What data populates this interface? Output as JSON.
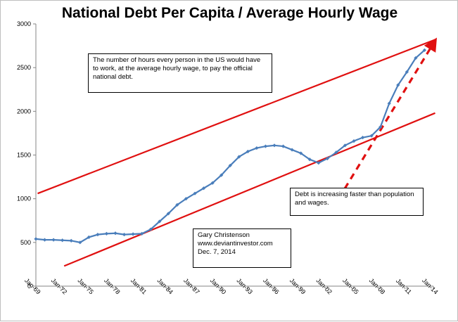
{
  "chart_data": {
    "type": "line",
    "title": "National Debt Per Capita / Average Hourly Wage",
    "xlabel": "",
    "ylabel": "",
    "ylim": [
      0,
      3000
    ],
    "y_ticks": [
      0,
      500,
      1000,
      1500,
      2000,
      2500,
      3000
    ],
    "x_tick_labels": [
      "Jan-69",
      "Jan-72",
      "Jan-75",
      "Jan-78",
      "Jan-81",
      "Jan-84",
      "Jan-87",
      "Jan-90",
      "Jan-93",
      "Jan-96",
      "Jan-99",
      "Jan-02",
      "Jan-05",
      "Jan-08",
      "Jan-11",
      "Jan-14"
    ],
    "x_start_year": 1969,
    "x_end_year": 2014,
    "grid": false,
    "series": [
      {
        "color": "#4a7ebb",
        "years": [
          1969,
          1970,
          1971,
          1972,
          1973,
          1974,
          1975,
          1976,
          1977,
          1978,
          1979,
          1980,
          1981,
          1982,
          1983,
          1984,
          1985,
          1986,
          1987,
          1988,
          1989,
          1990,
          1991,
          1992,
          1993,
          1994,
          1995,
          1996,
          1997,
          1998,
          1999,
          2000,
          2001,
          2002,
          2003,
          2004,
          2005,
          2006,
          2007,
          2008,
          2009,
          2010,
          2011,
          2012,
          2013
        ],
        "values": [
          540,
          530,
          530,
          525,
          520,
          500,
          560,
          590,
          600,
          605,
          590,
          595,
          600,
          650,
          740,
          830,
          930,
          1000,
          1060,
          1120,
          1180,
          1270,
          1380,
          1480,
          1540,
          1580,
          1600,
          1610,
          1600,
          1560,
          1520,
          1450,
          1410,
          1460,
          1530,
          1610,
          1660,
          1700,
          1720,
          1820,
          2090,
          2300,
          2450,
          2610,
          2700
        ]
      }
    ],
    "trend_lines": [
      {
        "color": "#e01010",
        "style": "solid",
        "from": [
          1969.2,
          1060
        ],
        "to": [
          2014.2,
          2820
        ]
      },
      {
        "color": "#e01010",
        "style": "solid",
        "from": [
          1972.2,
          230
        ],
        "to": [
          2014.2,
          1980
        ]
      },
      {
        "color": "#e01010",
        "style": "dashed",
        "arrow": true,
        "from": [
          2003.3,
          1005
        ],
        "to": [
          2014.2,
          2810
        ]
      }
    ],
    "annotations": [
      {
        "id": "hours",
        "text": "The number of hours every person in the US would have\nto work, at the average hourly wage, to pay the official\nnational debt."
      },
      {
        "id": "increase",
        "text": "Debt is increasing faster than population\nand wages."
      },
      {
        "id": "credit",
        "text": "Gary Christenson\nwww.deviantinvestor.com\nDec. 7, 2014"
      }
    ]
  }
}
